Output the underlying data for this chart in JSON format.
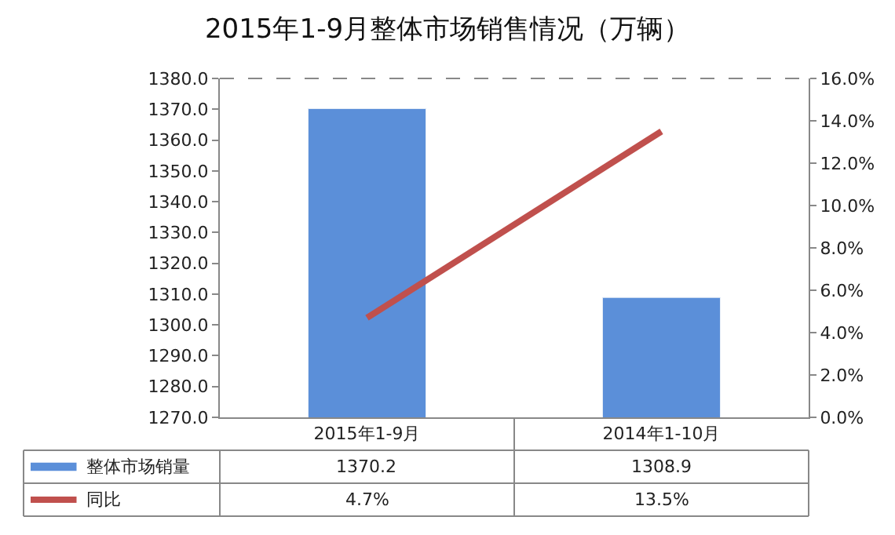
{
  "chart_data": {
    "type": "bar",
    "title": "2015年1-9月整体市场销售情况（万辆）",
    "categories": [
      "2015年1-9月",
      "2014年1-10月"
    ],
    "series": [
      {
        "name": "整体市场销量",
        "color": "#5b8fd9",
        "values": [
          1370.2,
          1308.9
        ],
        "value_labels": [
          "1370.2",
          "1308.9"
        ]
      },
      {
        "name": "同比",
        "type": "line",
        "axis": "y2",
        "color": "#c0504d",
        "values": [
          4.7,
          13.5
        ],
        "value_labels": [
          "4.7%",
          "13.5%"
        ]
      }
    ],
    "ylim": [
      1270,
      1380
    ],
    "yticks": [
      {
        "value": 1270,
        "label": "1270.0"
      },
      {
        "value": 1280,
        "label": "1280.0"
      },
      {
        "value": 1290,
        "label": "1290.0"
      },
      {
        "value": 1300,
        "label": "1300.0"
      },
      {
        "value": 1310,
        "label": "1310.0"
      },
      {
        "value": 1320,
        "label": "1320.0"
      },
      {
        "value": 1330,
        "label": "1330.0"
      },
      {
        "value": 1340,
        "label": "1340.0"
      },
      {
        "value": 1350,
        "label": "1350.0"
      },
      {
        "value": 1360,
        "label": "1360.0"
      },
      {
        "value": 1370,
        "label": "1370.0"
      },
      {
        "value": 1380,
        "label": "1380.0"
      }
    ],
    "y2lim": [
      0,
      16
    ],
    "y2ticks": [
      {
        "value": 0,
        "label": "0.0%"
      },
      {
        "value": 2,
        "label": "2.0%"
      },
      {
        "value": 4,
        "label": "4.0%"
      },
      {
        "value": 6,
        "label": "6.0%"
      },
      {
        "value": 8,
        "label": "8.0%"
      },
      {
        "value": 10,
        "label": "10.0%"
      },
      {
        "value": 12,
        "label": "12.0%"
      },
      {
        "value": 14,
        "label": "14.0%"
      },
      {
        "value": 16,
        "label": "16.0%"
      }
    ],
    "legend": "bottom left",
    "marker": "none",
    "line_style": "solid"
  }
}
